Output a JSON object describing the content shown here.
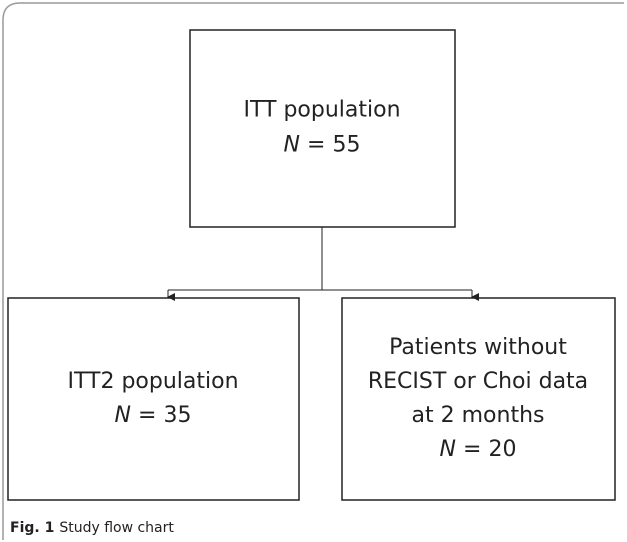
{
  "nodes": [
    {
      "lines": [
        "ITT population"
      ],
      "n_symbol": "N",
      "n_text": "= 55"
    },
    {
      "lines": [
        "ITT2 population"
      ],
      "n_symbol": "N",
      "n_text": "= 35"
    },
    {
      "lines": [
        "Patients without",
        "RECIST or Choi data",
        "at 2 months"
      ],
      "n_symbol": "N",
      "n_text": "= 20"
    }
  ],
  "caption": {
    "label": "Fig. 1",
    "text": "Study flow chart"
  }
}
